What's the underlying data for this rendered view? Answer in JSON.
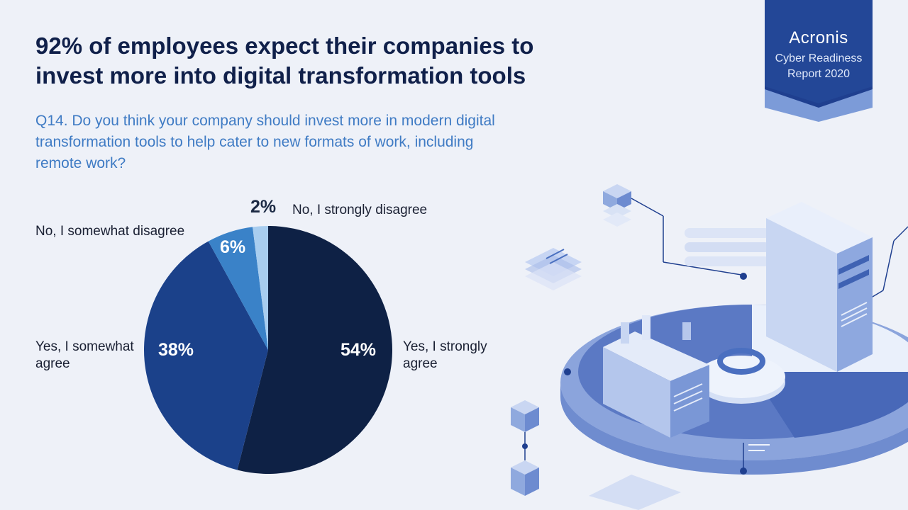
{
  "header": {
    "title_lines": [
      "92% of employees expect their companies to",
      "invest more into digital transformation tools"
    ],
    "question_lines": [
      "Q14. Do you think your company should invest more in modern digital",
      "transformation tools to help cater to new formats of work, including",
      "remote work?"
    ]
  },
  "badge": {
    "brand": "Acronis",
    "line1": "Cyber Readiness",
    "line2": "Report 2020"
  },
  "colors": {
    "background": "#eef1f8",
    "title": "#10204a",
    "question": "#3f7bc4",
    "badge": "#1f3f8f"
  },
  "chart_data": {
    "type": "pie",
    "title": "",
    "start": "12 o'clock",
    "direction": "clockwise",
    "slices": [
      {
        "label": "Yes, I strongly agree",
        "label_lines": [
          "Yes, I strongly",
          "agree"
        ],
        "value": 54,
        "display": "54%",
        "color": "#0e2145"
      },
      {
        "label": "Yes, I somewhat agree",
        "label_lines": [
          "Yes, I somewhat",
          "agree"
        ],
        "value": 38,
        "display": "38%",
        "color": "#1b418a"
      },
      {
        "label": "No, I somewhat disagree",
        "label_lines": [
          "No, I somewhat disagree"
        ],
        "value": 6,
        "display": "6%",
        "color": "#3a82c8"
      },
      {
        "label": "No, I strongly disagree",
        "label_lines": [
          "No, I strongly disagree"
        ],
        "value": 2,
        "display": "2%",
        "color": "#a8cdef"
      }
    ]
  }
}
